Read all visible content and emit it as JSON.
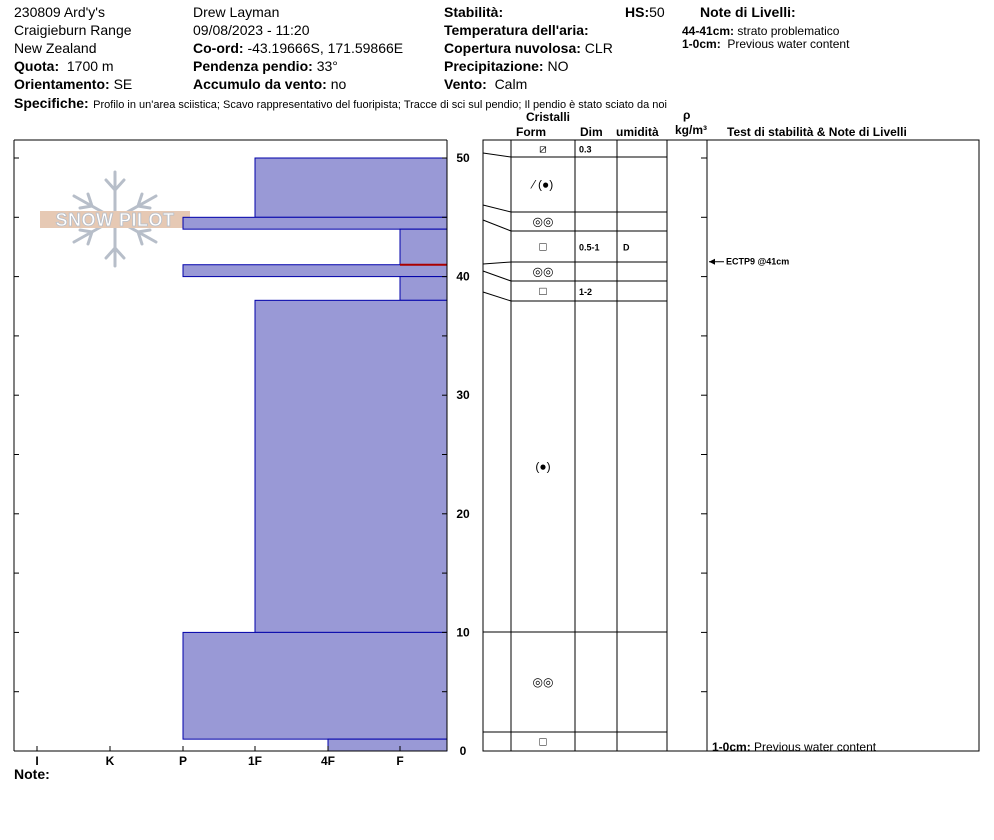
{
  "header": {
    "site": "230809 Ard'y's",
    "range": "Craigieburn Range",
    "country": "New Zealand",
    "quota_label": "Quota:",
    "quota_value": "1700 m",
    "orient_label": "Orientamento:",
    "orient_value": "SE",
    "observer": "Drew Layman",
    "datetime": "09/08/2023 - 11:20",
    "coord_label": "Co-ord:",
    "coord_value": "-43.19666S, 171.59866E",
    "slope_label": "Pendenza pendio:",
    "slope_value": "33°",
    "wind_load_label": "Accumulo da vento:",
    "wind_load_value": "no",
    "stability_label": "Stabilità:",
    "air_temp_label": "Temperatura dell'aria:",
    "cloud_label": "Copertura nuvolosa:",
    "cloud_value": "CLR",
    "precip_label": "Precipitazione:",
    "precip_value": "NO",
    "wind_label": "Vento:",
    "wind_value": "Calm",
    "hs_label": "HS:",
    "hs_value": "50",
    "layer_notes_title": "Note di Livelli:",
    "layer_notes": [
      {
        "range": "44-41cm:",
        "text": "strato problematico"
      },
      {
        "range": "1-0cm:",
        "text": "Previous water content"
      }
    ],
    "specifics_label": "Specifiche:",
    "specifics_value": "Profilo in un'area sciistica; Scavo rappresentativo del fuoripista; Tracce di sci sul pendio; Il pendio è stato sciato da noi"
  },
  "logo_text": "SNOW PILOT",
  "columns": {
    "crystals": "Cristalli",
    "form": "Form",
    "size": "Dim",
    "moisture": "umidità",
    "rho": "ρ",
    "density_unit": "kg/m³",
    "tests": "Test di stabilità & Note di Livelli"
  },
  "note_label": "Note:",
  "bottom_note": {
    "range": "1-0cm:",
    "text": "Previous water content"
  },
  "chart_data": {
    "type": "snow_profile",
    "depth_axis": {
      "min": 0,
      "max": 50,
      "ticks": [
        0,
        10,
        20,
        30,
        40,
        50
      ]
    },
    "hardness_axis": {
      "labels": [
        "I",
        "K",
        "P",
        "1F",
        "4F",
        "F"
      ]
    },
    "fill_color": "#9999d6",
    "edge_color": "#0000aa",
    "problem_color": "#aa0000",
    "hardness_layers": [
      {
        "top": 50,
        "bottom": 45,
        "hardness": "1F"
      },
      {
        "top": 45,
        "bottom": 44,
        "hardness": "P"
      },
      {
        "top": 44,
        "bottom": 41,
        "hardness": "F"
      },
      {
        "top": 41,
        "bottom": 40,
        "hardness": "P"
      },
      {
        "top": 40,
        "bottom": 38,
        "hardness": "F"
      },
      {
        "top": 38,
        "bottom": 10,
        "hardness": "1F"
      },
      {
        "top": 10,
        "bottom": 1,
        "hardness": "P"
      },
      {
        "top": 1,
        "bottom": 0,
        "hardness": "4F"
      }
    ],
    "problem_layer_depth": 41,
    "layers": [
      {
        "top": 50,
        "bottom": 48.7,
        "form": "⧄",
        "size": "0.3",
        "moisture": ""
      },
      {
        "top": 48.7,
        "bottom": 45.1,
        "form": "⁄ (●)",
        "size": "",
        "moisture": ""
      },
      {
        "top": 45.1,
        "bottom": 43.5,
        "form": "◎◎",
        "size": "",
        "moisture": ""
      },
      {
        "top": 43.5,
        "bottom": 41.1,
        "form": "□",
        "size": "0.5-1",
        "moisture": "D"
      },
      {
        "top": 41.1,
        "bottom": 39.4,
        "form": "◎◎",
        "size": "",
        "moisture": ""
      },
      {
        "top": 39.4,
        "bottom": 37.7,
        "form": "□",
        "size": "1-2",
        "moisture": ""
      },
      {
        "top": 37.7,
        "bottom": 10,
        "form": "(●)",
        "size": "",
        "moisture": ""
      },
      {
        "top": 10,
        "bottom": 1.6,
        "form": "◎◎",
        "size": "",
        "moisture": ""
      },
      {
        "top": 1.6,
        "bottom": 0,
        "form": "□",
        "size": "",
        "moisture": ""
      }
    ],
    "stability_tests": [
      {
        "depth": 41,
        "label": "ECTP9 @41cm"
      }
    ]
  }
}
